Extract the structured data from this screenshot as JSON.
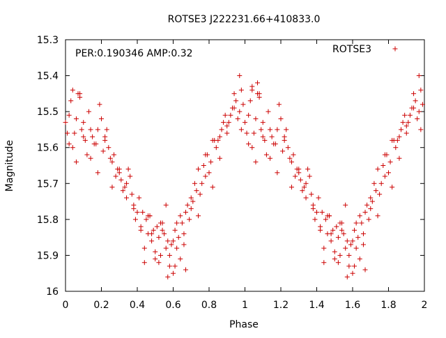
{
  "chart_data": {
    "type": "scatter",
    "title": "ROTSE3 J222231.66+410833.0",
    "xlabel": "Phase",
    "ylabel": "Magnitude",
    "annotation": "PER:0.190346 AMP:0.32",
    "xlim": [
      0,
      2
    ],
    "ylim": [
      15.3,
      16
    ],
    "y_inverted": true,
    "x_ticks": [
      "0",
      "0.2",
      "0.4",
      "0.6",
      "0.8",
      "1",
      "1.2",
      "1.4",
      "1.6",
      "1.8",
      "2"
    ],
    "y_ticks": [
      "15.3",
      "15.4",
      "15.5",
      "15.6",
      "15.7",
      "15.8",
      "15.9",
      "16"
    ],
    "grid": false,
    "legend_position": "top-right",
    "series": [
      {
        "name": "ROTSE3",
        "color": "#cc0000",
        "marker": "plus",
        "x": [
          0.0,
          0.02,
          0.03,
          0.05,
          0.07,
          0.09,
          0.11,
          0.13,
          0.15,
          0.17,
          0.19,
          0.21,
          0.23,
          0.25,
          0.27,
          0.29,
          0.31,
          0.33,
          0.35,
          0.37,
          0.39,
          0.41,
          0.43,
          0.45,
          0.47,
          0.49,
          0.51,
          0.53,
          0.55,
          0.57,
          0.59,
          0.61,
          0.63,
          0.65,
          0.67,
          0.69,
          0.71,
          0.73,
          0.75,
          0.77,
          0.79,
          0.81,
          0.83,
          0.85,
          0.87,
          0.89,
          0.91,
          0.93,
          0.95,
          0.97,
          0.99,
          0.01,
          0.04,
          0.06,
          0.08,
          0.1,
          0.12,
          0.14,
          0.16,
          0.18,
          0.2,
          0.22,
          0.24,
          0.26,
          0.28,
          0.3,
          0.32,
          0.34,
          0.36,
          0.38,
          0.4,
          0.42,
          0.44,
          0.46,
          0.48,
          0.5,
          0.52,
          0.54,
          0.56,
          0.58,
          0.6,
          0.62,
          0.64,
          0.66,
          0.68,
          0.7,
          0.72,
          0.74,
          0.76,
          0.78,
          0.8,
          0.82,
          0.84,
          0.86,
          0.88,
          0.9,
          0.92,
          0.94,
          0.96,
          0.98,
          0.02,
          0.06,
          0.1,
          0.14,
          0.18,
          0.22,
          0.26,
          0.3,
          0.34,
          0.38,
          0.42,
          0.46,
          0.5,
          0.54,
          0.58,
          0.62,
          0.66,
          0.7,
          0.74,
          0.78,
          0.82,
          0.86,
          0.9,
          0.94,
          0.98,
          0.44,
          0.48,
          0.52,
          0.56,
          0.6,
          0.64,
          0.47,
          0.53,
          0.57,
          0.61,
          0.67,
          0.97,
          1.04,
          1.07,
          0.04,
          0.08
        ],
        "y": [
          15.53,
          15.51,
          15.47,
          15.56,
          15.45,
          15.55,
          15.58,
          15.5,
          15.57,
          15.59,
          15.48,
          15.61,
          15.55,
          15.63,
          15.62,
          15.66,
          15.69,
          15.71,
          15.66,
          15.73,
          15.8,
          15.74,
          15.78,
          15.8,
          15.79,
          15.83,
          15.82,
          15.81,
          15.84,
          15.86,
          15.87,
          15.83,
          15.85,
          15.81,
          15.78,
          15.8,
          15.75,
          15.72,
          15.73,
          15.65,
          15.62,
          15.64,
          15.58,
          15.58,
          15.55,
          15.51,
          15.53,
          15.49,
          15.47,
          15.5,
          15.48,
          15.56,
          15.6,
          15.52,
          15.46,
          15.57,
          15.62,
          15.55,
          15.59,
          15.55,
          15.52,
          15.58,
          15.6,
          15.64,
          15.68,
          15.67,
          15.72,
          15.7,
          15.68,
          15.76,
          15.78,
          15.83,
          15.88,
          15.84,
          15.86,
          15.89,
          15.85,
          15.81,
          15.88,
          15.9,
          15.86,
          15.88,
          15.79,
          15.84,
          15.76,
          15.74,
          15.7,
          15.66,
          15.7,
          15.62,
          15.67,
          15.58,
          15.6,
          15.57,
          15.53,
          15.54,
          15.51,
          15.45,
          15.52,
          15.44,
          15.59,
          15.64,
          15.53,
          15.63,
          15.67,
          15.57,
          15.71,
          15.66,
          15.74,
          15.77,
          15.82,
          15.79,
          15.91,
          15.83,
          15.93,
          15.81,
          15.87,
          15.77,
          15.79,
          15.68,
          15.71,
          15.63,
          15.56,
          15.49,
          15.55,
          15.92,
          15.84,
          15.92,
          15.76,
          15.95,
          15.91,
          15.79,
          15.9,
          15.96,
          15.93,
          15.94,
          15.4,
          15.43,
          15.42,
          15.44,
          15.45
        ]
      }
    ]
  }
}
